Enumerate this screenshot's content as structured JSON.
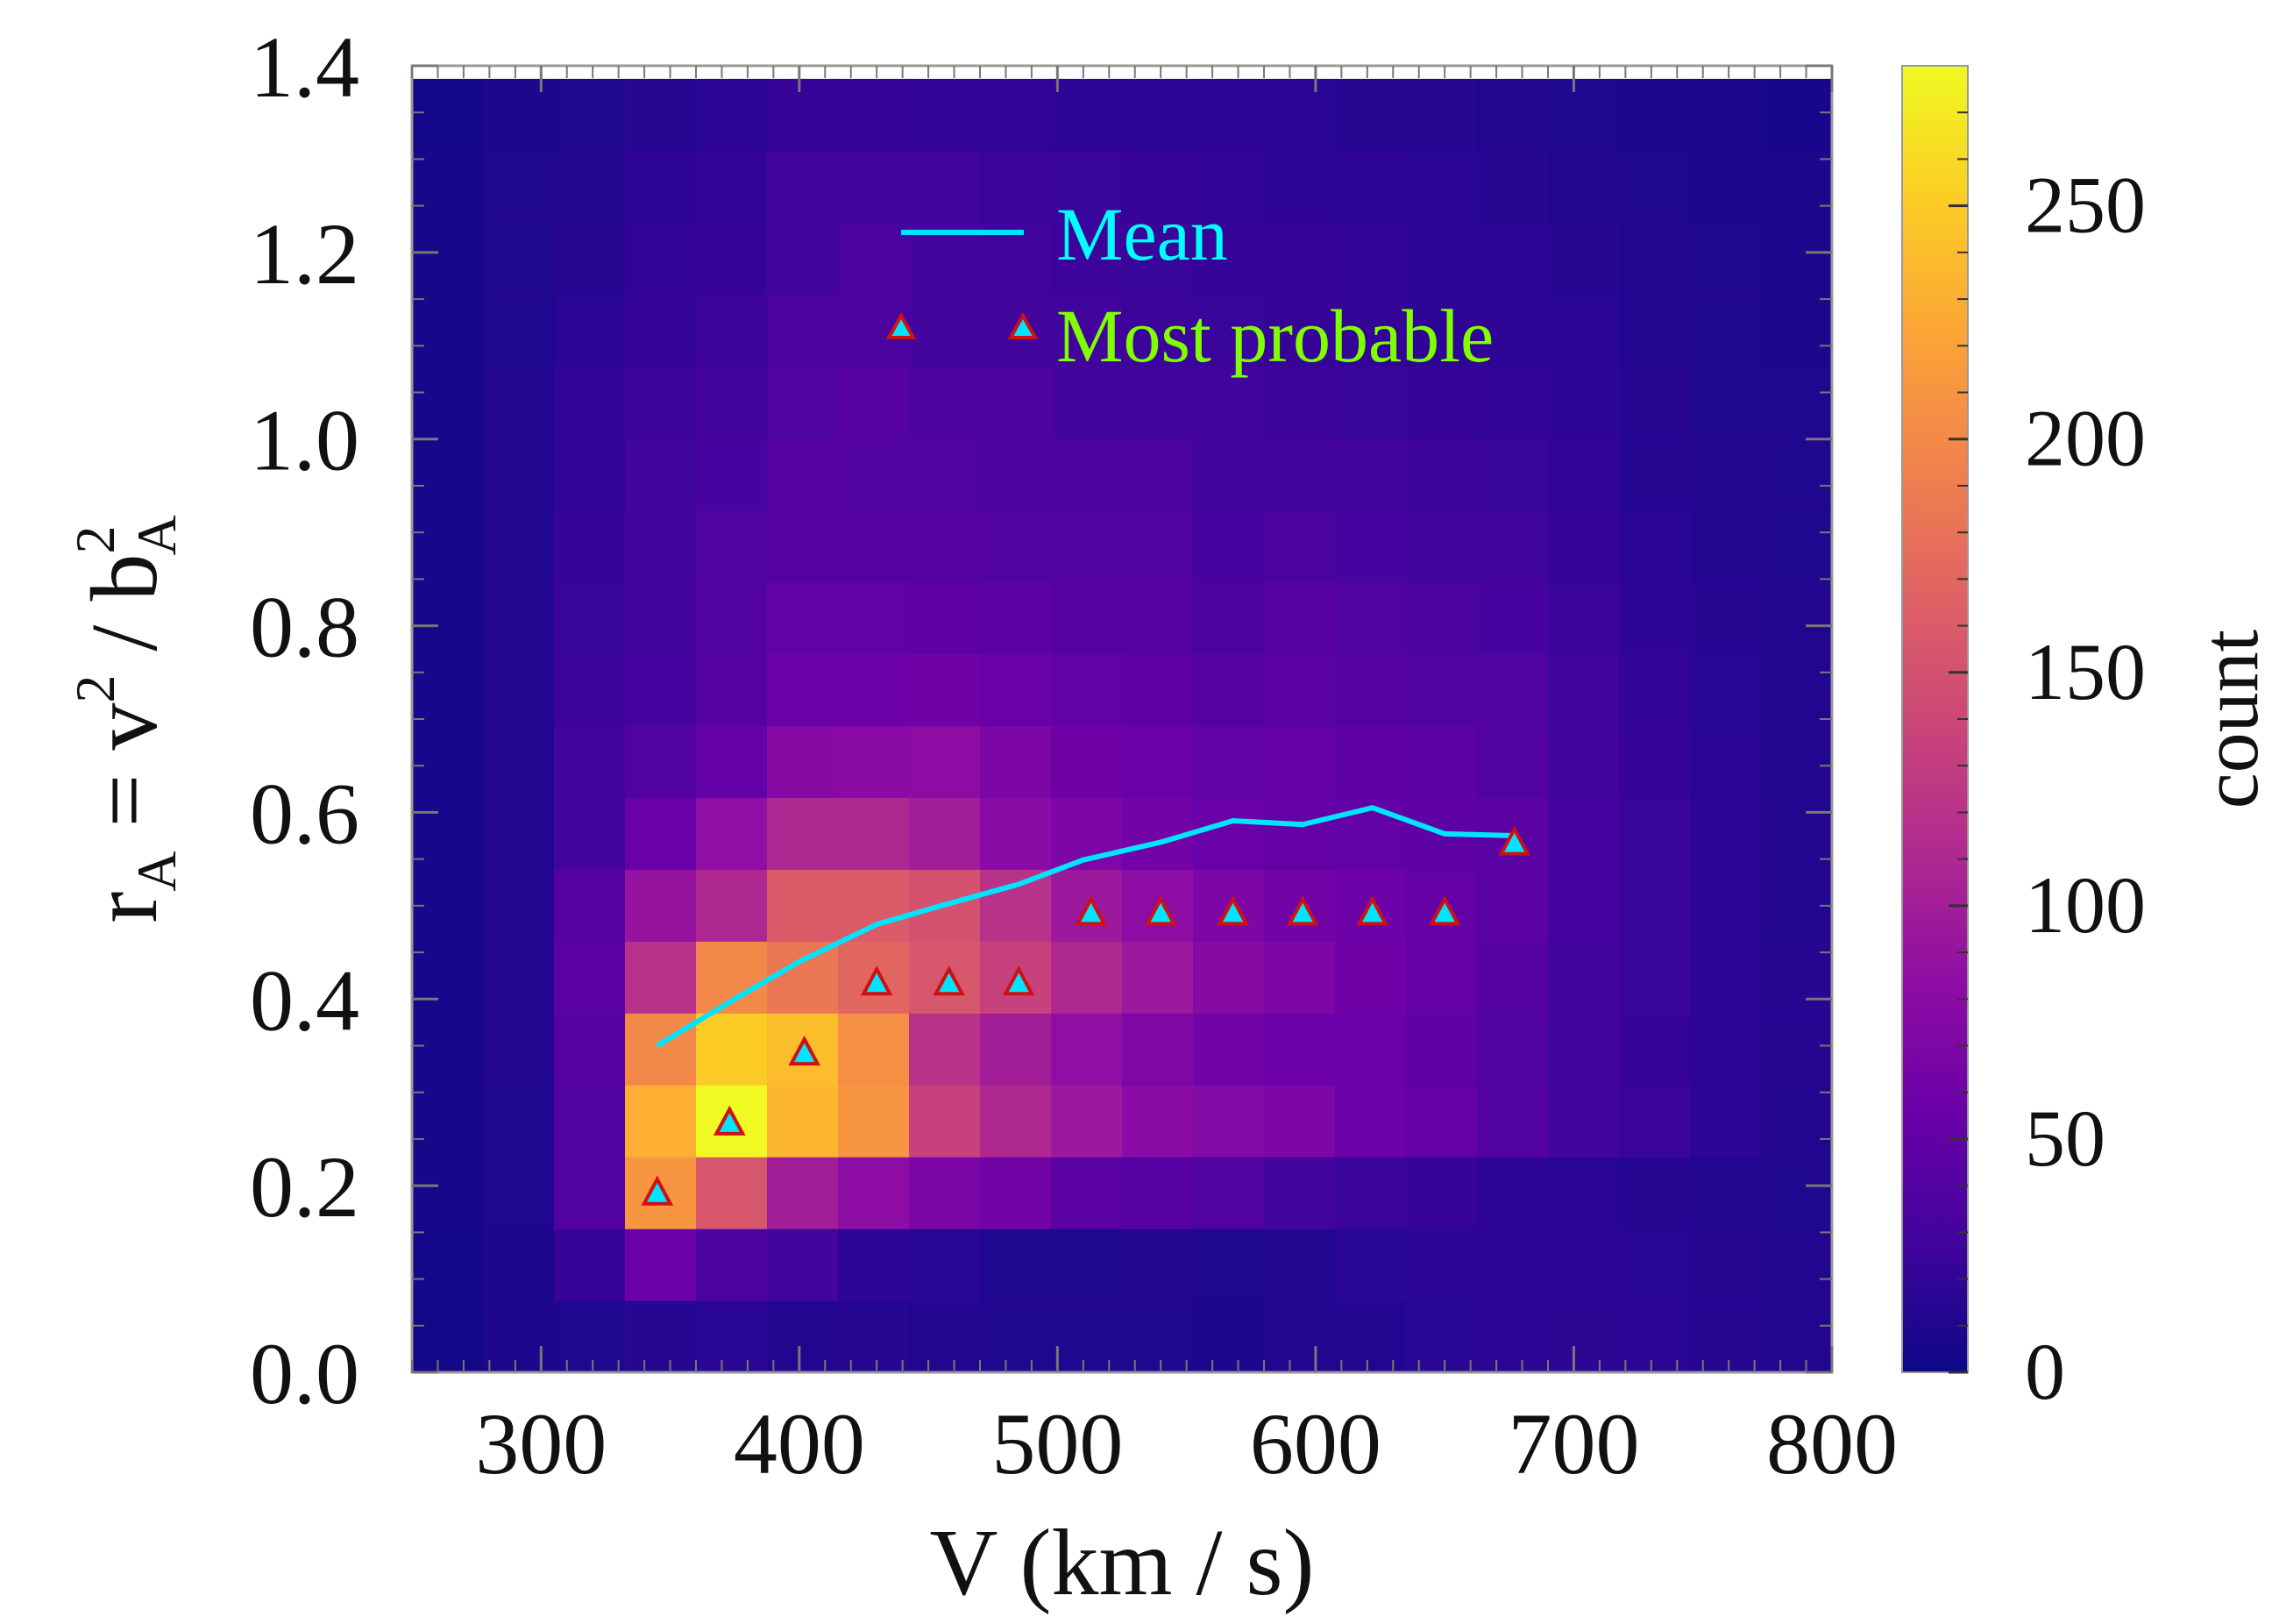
{
  "chart_data": {
    "type": "heatmap",
    "title": "",
    "xlabel": "V (km / s)",
    "ylabel_parts": {
      "main": "r",
      "main_sub": "A",
      "eq": " = v",
      "sup1": "2",
      "slash": " / b",
      "sup2": "2",
      "sub2": "A"
    },
    "xlim": [
      250,
      800
    ],
    "ylim": [
      0.0,
      1.4
    ],
    "x_ticks": [
      "300",
      "400",
      "500",
      "600",
      "700",
      "800"
    ],
    "x_tick_values": [
      300,
      400,
      500,
      600,
      700,
      800
    ],
    "y_ticks": [
      "0.0",
      "0.2",
      "0.4",
      "0.6",
      "0.8",
      "1.0",
      "1.2",
      "1.4"
    ],
    "y_tick_values": [
      0.0,
      0.2,
      0.4,
      0.6,
      0.8,
      1.0,
      1.2,
      1.4
    ],
    "bins": {
      "x_edges_start": 250,
      "x_bin_width": 27.5,
      "y_edges_start": 0.0,
      "y_bin_width": 0.077,
      "counts": [
        [
          3,
          8,
          10,
          14,
          15,
          12,
          14,
          12,
          10,
          10,
          10,
          9,
          12,
          12,
          15,
          16,
          17,
          16,
          14,
          12
        ],
        [
          4,
          8,
          22,
          55,
          35,
          30,
          18,
          15,
          10,
          10,
          12,
          10,
          12,
          15,
          16,
          18,
          18,
          15,
          14,
          12
        ],
        [
          5,
          10,
          40,
          210,
          155,
          100,
          82,
          68,
          62,
          45,
          42,
          38,
          30,
          25,
          22,
          18,
          16,
          14,
          12,
          10
        ],
        [
          5,
          10,
          40,
          230,
          280,
          235,
          210,
          135,
          110,
          95,
          80,
          75,
          70,
          58,
          52,
          40,
          30,
          25,
          18,
          12
        ],
        [
          6,
          12,
          42,
          200,
          250,
          240,
          205,
          120,
          100,
          85,
          72,
          62,
          58,
          55,
          48,
          38,
          28,
          22,
          18,
          14
        ],
        [
          6,
          12,
          45,
          120,
          200,
          185,
          170,
          155,
          135,
          110,
          95,
          78,
          70,
          60,
          52,
          42,
          30,
          24,
          18,
          14
        ],
        [
          6,
          12,
          42,
          90,
          110,
          160,
          160,
          150,
          120,
          95,
          82,
          70,
          62,
          58,
          52,
          45,
          32,
          24,
          18,
          12
        ],
        [
          6,
          12,
          30,
          55,
          85,
          110,
          110,
          100,
          80,
          70,
          62,
          55,
          52,
          50,
          48,
          45,
          32,
          24,
          18,
          12
        ],
        [
          6,
          12,
          28,
          40,
          52,
          78,
          80,
          82,
          70,
          60,
          55,
          50,
          52,
          48,
          45,
          40,
          30,
          22,
          16,
          12
        ],
        [
          6,
          12,
          26,
          32,
          42,
          58,
          58,
          60,
          55,
          50,
          48,
          42,
          45,
          42,
          40,
          38,
          28,
          20,
          15,
          12
        ],
        [
          6,
          12,
          24,
          30,
          40,
          50,
          50,
          48,
          45,
          42,
          42,
          35,
          42,
          38,
          35,
          32,
          25,
          18,
          14,
          12
        ],
        [
          6,
          12,
          22,
          28,
          38,
          42,
          42,
          42,
          40,
          38,
          38,
          32,
          35,
          32,
          30,
          28,
          22,
          16,
          12,
          10
        ],
        [
          6,
          12,
          20,
          28,
          32,
          42,
          40,
          38,
          36,
          35,
          34,
          30,
          30,
          28,
          26,
          24,
          20,
          14,
          12,
          10
        ],
        [
          6,
          12,
          20,
          26,
          30,
          38,
          42,
          36,
          36,
          30,
          30,
          28,
          26,
          24,
          22,
          20,
          18,
          14,
          10,
          10
        ],
        [
          5,
          10,
          16,
          22,
          26,
          34,
          34,
          30,
          30,
          28,
          26,
          24,
          22,
          20,
          18,
          18,
          16,
          12,
          10,
          8
        ],
        [
          5,
          10,
          14,
          20,
          22,
          30,
          34,
          30,
          28,
          26,
          24,
          22,
          22,
          20,
          18,
          16,
          14,
          12,
          10,
          8
        ],
        [
          5,
          10,
          12,
          18,
          20,
          28,
          30,
          28,
          26,
          24,
          22,
          20,
          18,
          18,
          16,
          14,
          12,
          10,
          8,
          8
        ],
        [
          4,
          8,
          10,
          14,
          16,
          22,
          22,
          20,
          20,
          18,
          18,
          16,
          16,
          14,
          14,
          12,
          10,
          8,
          8,
          6
        ]
      ]
    },
    "series": [
      {
        "name": "Mean",
        "type": "line",
        "color": "#00e5ff",
        "x": [
          345,
          375,
          400,
          430,
          455,
          485,
          510,
          540,
          568,
          595,
          622,
          650,
          677
        ],
        "y": [
          0.35,
          0.4,
          0.44,
          0.48,
          0.5,
          0.523,
          0.549,
          0.568,
          0.591,
          0.587,
          0.605,
          0.577,
          0.575
        ]
      },
      {
        "name": "Most probable",
        "type": "scatter",
        "marker": "triangle",
        "color": "#00e5ff",
        "edgecolor": "#d01010",
        "x": [
          345,
          373,
          402,
          430,
          458,
          485,
          513,
          540,
          568,
          595,
          622,
          650,
          677
        ],
        "y": [
          0.191,
          0.266,
          0.341,
          0.416,
          0.416,
          0.416,
          0.491,
          0.491,
          0.491,
          0.491,
          0.491,
          0.491,
          0.566
        ]
      }
    ],
    "legend": {
      "placement": "top-center",
      "entries": [
        "Mean",
        "Most probable"
      ]
    },
    "colorbar": {
      "label": "count",
      "range": [
        0,
        280
      ],
      "ticks": [
        "0",
        "50",
        "100",
        "150",
        "200",
        "250"
      ],
      "tick_values": [
        0,
        50,
        100,
        150,
        200,
        250
      ],
      "colormap": "plasma"
    },
    "colors": {
      "mean": "#00e5ff",
      "most_probable_label": "#7fff00",
      "marker_edge": "#d01010"
    }
  }
}
